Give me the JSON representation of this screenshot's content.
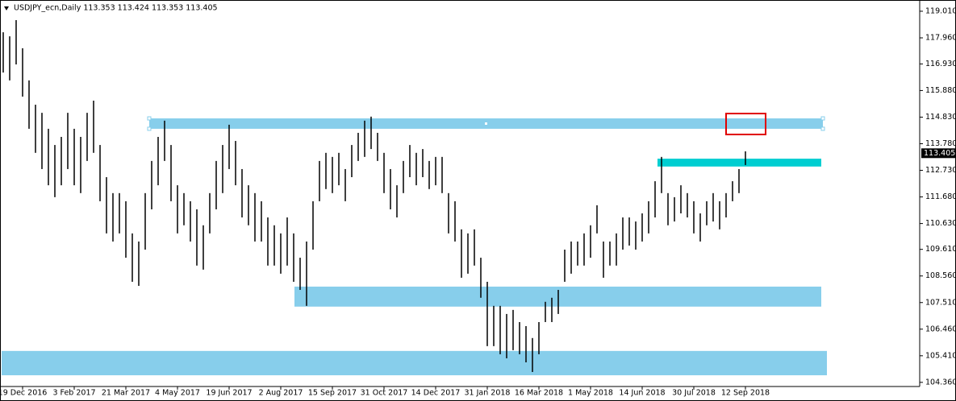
{
  "chart_data": {
    "type": "ohlc",
    "title": "USDJPY_ecn,Daily  113.353 113.424 113.353 113.405",
    "color": "#000000",
    "high": [
      118.18,
      118.02,
      118.66,
      117.55,
      116.28,
      115.32,
      115.0,
      114.37,
      113.73,
      114.05,
      115.0,
      114.37,
      114.05,
      115.0,
      115.48,
      113.73,
      112.46,
      111.83,
      111.83,
      111.51,
      110.24,
      109.92,
      111.83,
      113.1,
      114.05,
      114.69,
      113.73,
      112.14,
      111.83,
      111.51,
      111.19,
      110.56,
      111.83,
      113.1,
      113.73,
      114.53,
      113.89,
      112.78,
      112.14,
      111.83,
      111.51,
      110.87,
      110.56,
      110.24,
      110.87,
      110.24,
      109.28,
      109.92,
      111.51,
      113.1,
      113.42,
      113.26,
      113.42,
      112.78,
      113.73,
      114.21,
      114.69,
      114.85,
      114.21,
      113.42,
      112.78,
      112.14,
      113.1,
      113.73,
      113.42,
      113.57,
      113.1,
      113.26,
      113.26,
      111.83,
      111.51,
      110.4,
      110.24,
      110.4,
      109.28,
      108.33,
      107.38,
      107.38,
      107.06,
      107.22,
      106.74,
      106.58,
      106.11,
      106.74,
      107.54,
      107.7,
      108.01,
      109.6,
      109.92,
      109.92,
      110.24,
      110.56,
      111.35,
      109.92,
      109.92,
      110.24,
      110.87,
      110.87,
      110.71,
      111.03,
      111.51,
      112.3,
      113.26,
      111.83,
      111.67,
      112.14,
      111.83,
      111.51,
      111.03,
      111.51,
      111.83,
      111.51,
      111.83,
      112.3,
      112.78,
      113.48
    ],
    "low": [
      116.59,
      116.28,
      116.91,
      115.64,
      114.37,
      113.42,
      112.78,
      112.14,
      111.67,
      112.14,
      112.78,
      112.14,
      111.83,
      113.1,
      113.42,
      111.51,
      110.24,
      109.92,
      110.24,
      109.28,
      108.33,
      108.17,
      109.6,
      111.19,
      112.14,
      113.1,
      111.51,
      110.24,
      110.56,
      109.92,
      108.97,
      108.81,
      110.24,
      111.19,
      111.83,
      112.78,
      112.14,
      110.87,
      110.56,
      109.92,
      109.92,
      108.97,
      108.97,
      108.65,
      108.97,
      108.33,
      108.01,
      107.38,
      109.6,
      111.51,
      111.99,
      111.83,
      112.14,
      111.51,
      112.46,
      113.1,
      113.26,
      113.57,
      113.1,
      111.83,
      111.19,
      110.87,
      111.83,
      112.46,
      112.14,
      112.46,
      111.99,
      112.14,
      111.83,
      110.24,
      109.92,
      108.49,
      108.65,
      108.97,
      107.7,
      105.79,
      105.79,
      105.47,
      105.31,
      105.63,
      105.47,
      105.15,
      104.77,
      105.47,
      106.74,
      106.74,
      107.06,
      108.33,
      108.65,
      108.97,
      108.97,
      109.28,
      110.24,
      108.49,
      108.97,
      108.97,
      109.6,
      109.76,
      109.6,
      109.92,
      110.24,
      110.87,
      111.83,
      110.56,
      110.71,
      111.03,
      110.87,
      110.24,
      109.92,
      110.56,
      110.71,
      110.4,
      110.87,
      111.51,
      111.83,
      112.94
    ],
    "x_labels": [
      "19 Dec 2016",
      "3 Feb 2017",
      "21 Mar 2017",
      "4 May 2017",
      "19 Jun 2017",
      "2 Aug 2017",
      "15 Sep 2017",
      "31 Oct 2017",
      "14 Dec 2017",
      "31 Jan 2018",
      "16 Mar 2018",
      "1 May 2018",
      "14 Jun 2018",
      "30 Jul 2018",
      "12 Sep 2018"
    ],
    "ylim": [
      104.26,
      119.39
    ],
    "yticks": [
      {
        "value": 119.01,
        "label": "119.010"
      },
      {
        "value": 117.96,
        "label": "117.960"
      },
      {
        "value": 116.93,
        "label": "116.930"
      },
      {
        "value": 115.88,
        "label": "115.880"
      },
      {
        "value": 114.83,
        "label": "114.830"
      },
      {
        "value": 113.78,
        "label": "113.780"
      },
      {
        "value": 112.73,
        "label": "112.730"
      },
      {
        "value": 111.68,
        "label": "111.680"
      },
      {
        "value": 110.63,
        "label": "110.630"
      },
      {
        "value": 109.61,
        "label": "109.610"
      },
      {
        "value": 108.56,
        "label": "108.560"
      },
      {
        "value": 107.51,
        "label": "107.510"
      },
      {
        "value": 106.46,
        "label": "106.460"
      },
      {
        "value": 105.41,
        "label": "105.410"
      },
      {
        "value": 104.36,
        "label": "104.360"
      }
    ],
    "last_price": 113.405,
    "zones": [
      {
        "high": 114.78,
        "low": 114.37,
        "color": "#87ceeb"
      },
      {
        "high": 113.19,
        "low": 112.88,
        "color": "#00ced1"
      },
      {
        "high": 108.14,
        "low": 107.35,
        "color": "#87ceeb"
      },
      {
        "high": 105.6,
        "low": 104.64,
        "color": "#87ceeb"
      }
    ],
    "grid": false
  }
}
